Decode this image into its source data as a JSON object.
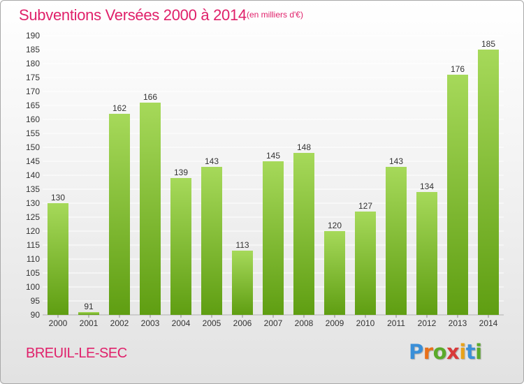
{
  "header": {
    "title": "Subventions Versées 2000 à 2014",
    "unit_note": "(en milliers d'€)"
  },
  "footer": {
    "commune": "BREUIL-LE-SEC",
    "logo_letters": [
      "P",
      "r",
      "o",
      "x",
      "i",
      "t",
      "i"
    ],
    "logo_colors": [
      "#3a8fd8",
      "#e8701a",
      "#5aaa2a",
      "#d83a3a",
      "#e8a21a",
      "#3a8fd8",
      "#5aaa2a"
    ]
  },
  "colors": {
    "title": "#e0206a",
    "bar_light": "#a6d95a",
    "bar_dark": "#5f9e12",
    "grid": "#ffffff",
    "axis_text": "#333333"
  },
  "chart_data": {
    "type": "bar",
    "title": "Subventions Versées 2000 à 2014",
    "subtitle": "(en milliers d'€)",
    "xlabel": "",
    "ylabel": "",
    "categories": [
      "2000",
      "2001",
      "2002",
      "2003",
      "2004",
      "2005",
      "2006",
      "2007",
      "2008",
      "2009",
      "2010",
      "2011",
      "2012",
      "2013",
      "2014"
    ],
    "values": [
      130,
      91,
      162,
      166,
      139,
      143,
      113,
      145,
      148,
      120,
      127,
      143,
      134,
      176,
      185
    ],
    "ylim": [
      90,
      190
    ],
    "ytick_step": 5,
    "grid": true,
    "legend": "none"
  }
}
